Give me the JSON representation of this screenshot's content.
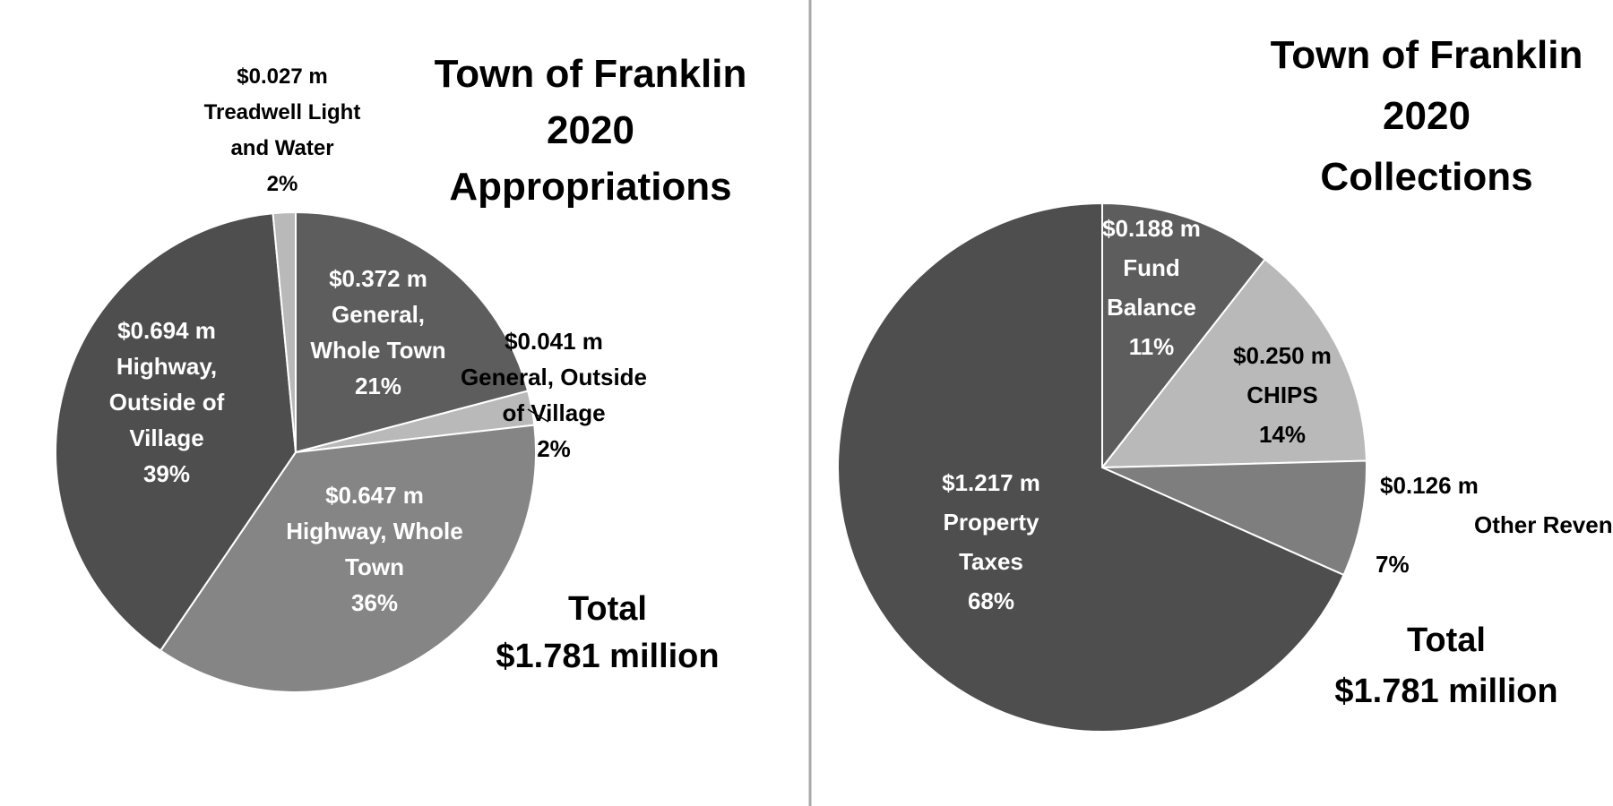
{
  "chart_data": [
    {
      "type": "pie",
      "title_lines": [
        "Town of Franklin",
        "2020",
        "Appropriations"
      ],
      "total_lines": [
        "Total",
        "$1.781 million"
      ],
      "slices": [
        {
          "name": "General, Whole Town",
          "amount": "$0.372 m",
          "value": 0.372,
          "percent": "21%",
          "label_lines": [
            "$0.372 m",
            "General,",
            "Whole Town",
            "21%"
          ],
          "color": "#5d5d5d"
        },
        {
          "name": "General, Outside of Village",
          "amount": "$0.041 m",
          "value": 0.041,
          "percent": "2%",
          "label_lines": [
            "$0.041 m",
            "General, Outside",
            "of Village",
            "2%"
          ],
          "color": "#b9b9b9"
        },
        {
          "name": "Highway, Whole Town",
          "amount": "$0.647 m",
          "value": 0.647,
          "percent": "36%",
          "label_lines": [
            "$0.647 m",
            "Highway, Whole",
            "Town",
            "36%"
          ],
          "color": "#858585"
        },
        {
          "name": "Highway, Outside of Village",
          "amount": "$0.694 m",
          "value": 0.694,
          "percent": "39%",
          "label_lines": [
            "$0.694 m",
            "Highway,",
            "Outside of",
            "Village",
            "39%"
          ],
          "color": "#4e4e4e"
        },
        {
          "name": "Treadwell Light and Water",
          "amount": "$0.027 m",
          "value": 0.027,
          "percent": "2%",
          "label_lines": [
            "$0.027  m",
            "Treadwell Light",
            "and Water",
            "2%"
          ],
          "color": "#b9b9b9"
        }
      ]
    },
    {
      "type": "pie",
      "title_lines": [
        "Town of Franklin",
        "2020",
        "Collections"
      ],
      "total_lines": [
        "Total",
        "$1.781 million"
      ],
      "slices": [
        {
          "name": "Fund Balance",
          "amount": "$0.188 m",
          "value": 0.188,
          "percent": "11%",
          "label_lines": [
            "$0.188  m",
            "Fund",
            "Balance",
            "11%"
          ],
          "color": "#5d5d5d"
        },
        {
          "name": "CHIPS",
          "amount": "$0.250 m",
          "value": 0.25,
          "percent": "14%",
          "label_lines": [
            "$0.250  m",
            "CHIPS",
            "14%"
          ],
          "color": "#b9b9b9"
        },
        {
          "name": "Other Revenues",
          "amount": "$0.126 m",
          "value": 0.126,
          "percent": "7%",
          "label_lines": [
            "$0.126  m",
            "Other Revenues",
            "7%"
          ],
          "color": "#7e7e7e"
        },
        {
          "name": "Property Taxes",
          "amount": "$1.217 m",
          "value": 1.217,
          "percent": "68%",
          "label_lines": [
            "$1.217  m",
            "Property",
            "Taxes",
            "68%"
          ],
          "color": "#4e4e4e"
        }
      ]
    }
  ]
}
